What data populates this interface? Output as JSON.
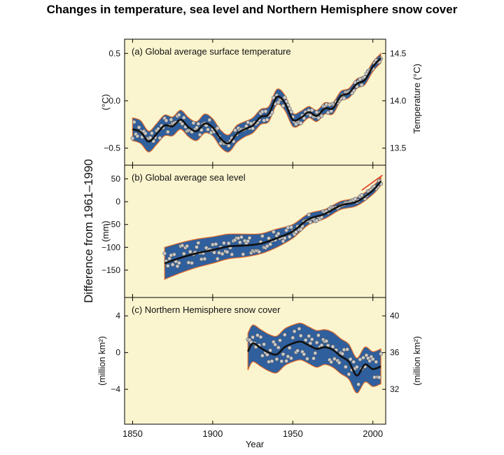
{
  "figure": {
    "title": "Changes in temperature, sea level and Northern Hemisphere snow cover",
    "shared_ylabel": "Difference from 1961–1990",
    "xlabel": "Year",
    "x_ticks": [
      "1850",
      "1900",
      "1950",
      "2000"
    ],
    "colors": {
      "panel_bg": "#fbf5cf",
      "band": "#2f5f9d",
      "band_edge": "#e06a2a",
      "smooth_line": "#111111",
      "point_fill": "#c9c9c9",
      "projection": "#e0442a"
    }
  },
  "chart_data": [
    {
      "type": "line",
      "title": "(a) Global average surface temperature",
      "ylabel": "(°C)",
      "ylabel_right": "Temperature (°C)",
      "xlim": [
        1845,
        2008
      ],
      "ylim": [
        -0.68,
        0.65
      ],
      "y_ticks": [
        -0.5,
        0.0,
        0.5
      ],
      "y_tick_labels": [
        "−0.5",
        "0.0",
        "0.5"
      ],
      "y_ticks_right": [
        13.5,
        14.0,
        14.5
      ],
      "y_tick_labels_right": [
        "13.5",
        "14.0",
        "14.5"
      ],
      "right_axis_offset": 14.0,
      "series": [
        {
          "x": [
            1850,
            1855,
            1860,
            1865,
            1870,
            1875,
            1880,
            1885,
            1890,
            1895,
            1900,
            1905,
            1910,
            1915,
            1920,
            1925,
            1930,
            1935,
            1940,
            1945,
            1950,
            1955,
            1960,
            1965,
            1970,
            1975,
            1980,
            1985,
            1990,
            1995,
            2000,
            2005
          ],
          "y": [
            -0.3,
            -0.33,
            -0.43,
            -0.35,
            -0.26,
            -0.27,
            -0.2,
            -0.28,
            -0.32,
            -0.24,
            -0.28,
            -0.4,
            -0.45,
            -0.35,
            -0.3,
            -0.26,
            -0.17,
            -0.14,
            0.04,
            -0.02,
            -0.2,
            -0.18,
            -0.12,
            -0.16,
            -0.08,
            -0.08,
            0.05,
            0.08,
            0.18,
            0.22,
            0.36,
            0.45
          ],
          "band_half_width": [
            0.12,
            0.12,
            0.11,
            0.11,
            0.11,
            0.1,
            0.1,
            0.1,
            0.1,
            0.1,
            0.09,
            0.09,
            0.09,
            0.09,
            0.08,
            0.08,
            0.08,
            0.08,
            0.08,
            0.08,
            0.07,
            0.07,
            0.06,
            0.06,
            0.06,
            0.06,
            0.05,
            0.05,
            0.05,
            0.05,
            0.05,
            0.05
          ]
        }
      ]
    },
    {
      "type": "line",
      "title": "(b) Global average sea level",
      "ylabel": "(mm)",
      "xlim": [
        1845,
        2008
      ],
      "ylim": [
        -210,
        80
      ],
      "y_ticks": [
        -150,
        -100,
        -50,
        0,
        50
      ],
      "y_tick_labels": [
        "−150",
        "−100",
        "−50",
        "0",
        "50"
      ],
      "series": [
        {
          "x": [
            1870,
            1880,
            1890,
            1900,
            1910,
            1920,
            1930,
            1940,
            1950,
            1960,
            1970,
            1980,
            1990,
            2000,
            2005
          ],
          "y": [
            -135,
            -123,
            -113,
            -106,
            -98,
            -96,
            -92,
            -80,
            -65,
            -38,
            -27,
            -8,
            0,
            25,
            45
          ],
          "band_half_width": [
            35,
            33,
            31,
            29,
            27,
            25,
            22,
            20,
            15,
            12,
            10,
            9,
            9,
            9,
            9
          ]
        }
      ],
      "projection": {
        "x": [
          1993,
          2006
        ],
        "y": [
          25,
          58
        ]
      }
    },
    {
      "type": "line",
      "title": "(c) Northern Hemisphere snow cover",
      "ylabel": "(million km²)",
      "ylabel_right": "(million km²)",
      "xlim": [
        1845,
        2008
      ],
      "ylim": [
        -7.8,
        6.0
      ],
      "y_ticks": [
        -4,
        0,
        4
      ],
      "y_tick_labels": [
        "−4",
        "0",
        "4"
      ],
      "y_ticks_right": [
        32,
        36,
        40
      ],
      "y_tick_labels_right": [
        "32",
        "36",
        "40"
      ],
      "right_axis_offset": 36.0,
      "series": [
        {
          "x": [
            1922,
            1925,
            1930,
            1935,
            1940,
            1945,
            1950,
            1955,
            1960,
            1965,
            1970,
            1975,
            1980,
            1985,
            1990,
            1995,
            2000,
            2005
          ],
          "y": [
            0.1,
            1.0,
            0.5,
            0.0,
            -0.2,
            0.6,
            1.0,
            1.2,
            0.8,
            0.4,
            0.6,
            0.3,
            -0.4,
            -1.0,
            -2.5,
            -1.3,
            -1.8,
            -1.5
          ],
          "band_half_width": [
            2.0,
            2.0,
            2.0,
            2.0,
            2.0,
            2.0,
            2.0,
            2.0,
            2.0,
            2.0,
            1.9,
            1.9,
            1.9,
            1.9,
            1.9,
            1.9,
            1.9,
            1.9
          ]
        }
      ]
    }
  ]
}
